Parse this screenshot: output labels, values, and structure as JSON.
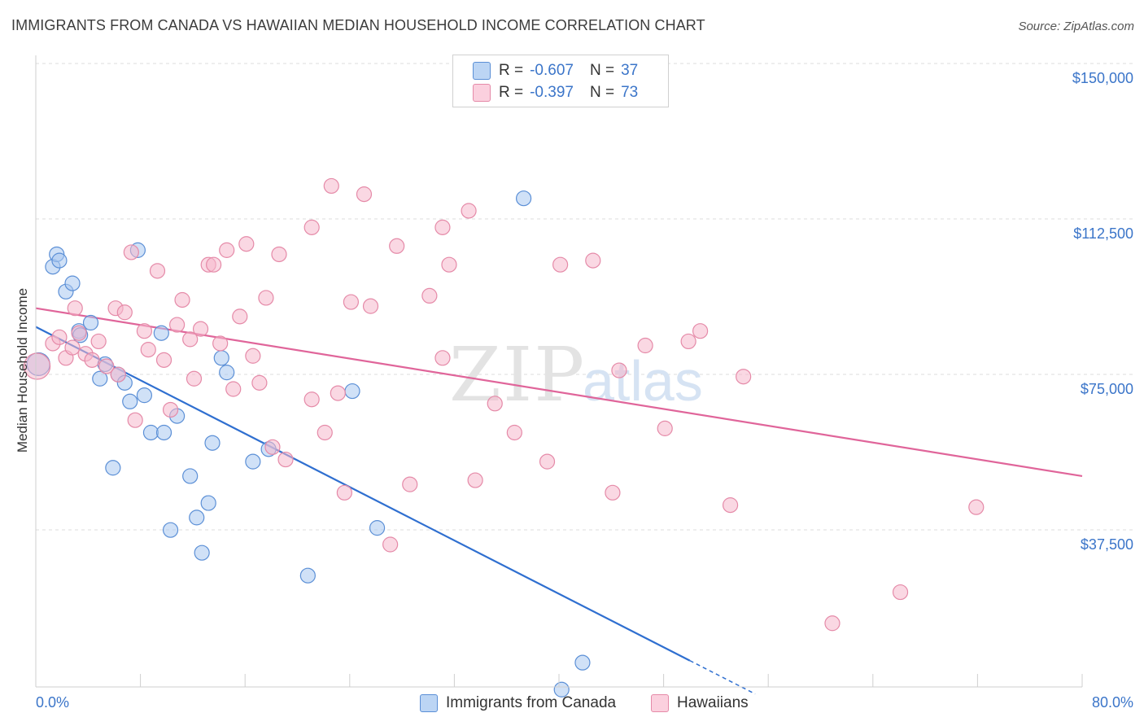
{
  "title": "IMMIGRANTS FROM CANADA VS HAWAIIAN MEDIAN HOUSEHOLD INCOME CORRELATION CHART",
  "source": "Source: ZipAtlas.com",
  "watermark": {
    "zip": "ZIP",
    "atlas": "atlas"
  },
  "legend": {
    "rows": [
      {
        "r_label": "R =",
        "r_value": "-0.607",
        "n_label": "N =",
        "n_value": "37",
        "color": "#a9c8f0"
      },
      {
        "r_label": "R =",
        "r_value": "-0.397",
        "n_label": "N =",
        "n_value": "73",
        "color": "#f5b8cc"
      }
    ]
  },
  "bottom_legend": {
    "items": [
      {
        "label": "Immigrants from Canada",
        "color": "#a9c8f0"
      },
      {
        "label": "Hawaiians",
        "color": "#f5b8cc"
      }
    ]
  },
  "chart_data": {
    "type": "scatter",
    "title": "IMMIGRANTS FROM CANADA VS HAWAIIAN MEDIAN HOUSEHOLD INCOME CORRELATION CHART",
    "xlabel": "",
    "ylabel": "Median Household Income",
    "xlim": [
      0,
      80
    ],
    "ylim": [
      0,
      155000
    ],
    "x_tick_labels": [
      "0.0%",
      "80.0%"
    ],
    "y_ticks": [
      37500,
      75000,
      112500,
      150000
    ],
    "y_tick_labels": [
      "$37,500",
      "$75,000",
      "$112,500",
      "$150,000"
    ],
    "grid": true,
    "series": [
      {
        "name": "Immigrants from Canada",
        "color": "#a9c8f0",
        "stroke": "#5b8fd6",
        "line_color": "#2f6fd0",
        "trend": {
          "x0": 0,
          "y0": 90000,
          "x1": 50,
          "y1": 9500,
          "dash_to_x": 55
        },
        "points": [
          [
            0.2,
            81000,
            14
          ],
          [
            1.3,
            104500,
            9
          ],
          [
            1.6,
            107500,
            9
          ],
          [
            1.8,
            106000,
            9
          ],
          [
            2.3,
            98500,
            9
          ],
          [
            2.8,
            100500,
            9
          ],
          [
            3.3,
            89000,
            9
          ],
          [
            3.4,
            88000,
            9
          ],
          [
            4.2,
            91000,
            9
          ],
          [
            4.9,
            77500,
            9
          ],
          [
            5.3,
            81000,
            9
          ],
          [
            6.3,
            78500,
            9
          ],
          [
            6.8,
            76500,
            9
          ],
          [
            7.2,
            72000,
            9
          ],
          [
            7.8,
            108500,
            9
          ],
          [
            8.3,
            73500,
            9
          ],
          [
            8.8,
            64500,
            9
          ],
          [
            9.6,
            88500,
            9
          ],
          [
            9.8,
            64500,
            9
          ],
          [
            10.3,
            41000,
            9
          ],
          [
            10.8,
            68500,
            9
          ],
          [
            11.8,
            54000,
            9
          ],
          [
            12.3,
            44000,
            9
          ],
          [
            12.7,
            35500,
            9
          ],
          [
            13.2,
            47500,
            9
          ],
          [
            13.5,
            62000,
            9
          ],
          [
            14.2,
            82500,
            9
          ],
          [
            14.6,
            79000,
            9
          ],
          [
            16.6,
            57500,
            9
          ],
          [
            17.8,
            60500,
            9
          ],
          [
            5.9,
            56000,
            9
          ],
          [
            20.8,
            30000,
            9
          ],
          [
            24.2,
            74500,
            9
          ],
          [
            26.1,
            41500,
            9
          ],
          [
            37.3,
            121000,
            9
          ],
          [
            41.8,
            9000,
            9
          ],
          [
            40.2,
            2500,
            9
          ]
        ]
      },
      {
        "name": "Hawaiians",
        "color": "#f5b8cc",
        "stroke": "#e58aa8",
        "line_color": "#e0659a",
        "trend": {
          "x0": 0,
          "y0": 94500,
          "x1": 80,
          "y1": 54000
        },
        "points": [
          [
            0.1,
            80500,
            16
          ],
          [
            1.3,
            86000,
            9
          ],
          [
            1.8,
            87500,
            9
          ],
          [
            2.3,
            82500,
            9
          ],
          [
            2.8,
            85000,
            9
          ],
          [
            3.0,
            94500,
            9
          ],
          [
            3.3,
            88500,
            9
          ],
          [
            3.8,
            83500,
            9
          ],
          [
            4.3,
            82000,
            9
          ],
          [
            4.8,
            86500,
            9
          ],
          [
            5.4,
            80500,
            9
          ],
          [
            6.1,
            94500,
            9
          ],
          [
            6.3,
            78500,
            9
          ],
          [
            6.8,
            93500,
            9
          ],
          [
            7.3,
            108000,
            9
          ],
          [
            7.6,
            67500,
            9
          ],
          [
            8.3,
            89000,
            9
          ],
          [
            8.6,
            84500,
            9
          ],
          [
            9.3,
            103500,
            9
          ],
          [
            9.8,
            82000,
            9
          ],
          [
            10.3,
            70000,
            9
          ],
          [
            10.8,
            90500,
            9
          ],
          [
            11.2,
            96500,
            9
          ],
          [
            11.8,
            87000,
            9
          ],
          [
            12.1,
            77500,
            9
          ],
          [
            12.6,
            89500,
            9
          ],
          [
            13.2,
            105000,
            9
          ],
          [
            13.6,
            105000,
            9
          ],
          [
            14.1,
            86000,
            9
          ],
          [
            14.6,
            108500,
            9
          ],
          [
            15.1,
            75000,
            9
          ],
          [
            15.6,
            92500,
            9
          ],
          [
            16.1,
            110000,
            9
          ],
          [
            16.6,
            83000,
            9
          ],
          [
            17.1,
            76500,
            9
          ],
          [
            17.6,
            97000,
            9
          ],
          [
            18.1,
            61000,
            9
          ],
          [
            18.6,
            107500,
            9
          ],
          [
            19.1,
            58000,
            9
          ],
          [
            21.1,
            114000,
            9
          ],
          [
            21.1,
            72500,
            9
          ],
          [
            22.1,
            64500,
            9
          ],
          [
            22.6,
            124000,
            9
          ],
          [
            23.1,
            74000,
            9
          ],
          [
            23.6,
            50000,
            9
          ],
          [
            24.1,
            96000,
            9
          ],
          [
            25.1,
            122000,
            9
          ],
          [
            25.6,
            95000,
            9
          ],
          [
            27.1,
            37500,
            9
          ],
          [
            27.6,
            109500,
            9
          ],
          [
            28.6,
            52000,
            9
          ],
          [
            30.1,
            97500,
            9
          ],
          [
            31.1,
            114000,
            9
          ],
          [
            31.1,
            82500,
            9
          ],
          [
            31.6,
            105000,
            9
          ],
          [
            33.1,
            118000,
            9
          ],
          [
            33.6,
            53000,
            9
          ],
          [
            35.1,
            71500,
            9
          ],
          [
            36.6,
            64500,
            9
          ],
          [
            39.1,
            57500,
            9
          ],
          [
            40.1,
            105000,
            9
          ],
          [
            42.6,
            106000,
            9
          ],
          [
            44.1,
            50000,
            9
          ],
          [
            44.6,
            79500,
            9
          ],
          [
            46.6,
            85500,
            9
          ],
          [
            48.1,
            65500,
            9
          ],
          [
            49.9,
            86500,
            9
          ],
          [
            50.8,
            89000,
            9
          ],
          [
            53.1,
            47000,
            9
          ],
          [
            54.1,
            78000,
            9
          ],
          [
            60.9,
            18500,
            9
          ],
          [
            66.1,
            26000,
            9
          ],
          [
            71.9,
            46500,
            9
          ]
        ]
      }
    ]
  }
}
